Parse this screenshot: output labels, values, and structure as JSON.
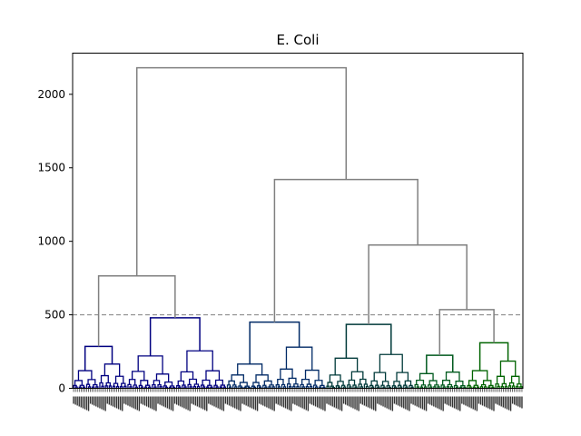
{
  "chart_data": {
    "type": "dendrogram",
    "title": "E. Coli",
    "xlabel": "",
    "ylabel": "",
    "ylim": [
      0,
      2280
    ],
    "y_ticks": [
      0,
      500,
      1000,
      1500,
      2000
    ],
    "threshold": 500,
    "threshold_style": "dashed",
    "grid": false,
    "colors": {
      "above_threshold": "#808080",
      "threshold_line": "#808080",
      "clusters": [
        "#000080",
        "#002a66",
        "#003a3a",
        "#005a1e",
        "#006400"
      ]
    },
    "upper_merges": [
      {
        "height": 2180,
        "children": [
          "A",
          "BC"
        ]
      },
      {
        "height": 1420,
        "children": [
          "B",
          "C"
        ]
      },
      {
        "height": 975,
        "children": [
          "C1",
          "C2"
        ]
      },
      {
        "height": 765,
        "children": [
          "A1",
          "A2"
        ]
      },
      {
        "height": 535,
        "children": [
          "C2a",
          "C2b"
        ]
      },
      {
        "height": 450,
        "children": [
          "B1",
          "B2"
        ]
      },
      {
        "height": 435,
        "children": [
          "C1a",
          "C1b"
        ]
      }
    ],
    "clusters": [
      {
        "id": "A1",
        "merge_height": 285,
        "color": "#000080",
        "subclusters": [
          120,
          165
        ]
      },
      {
        "id": "A2",
        "merge_height": 480,
        "color": "#000080",
        "subclusters": [
          220,
          255
        ]
      },
      {
        "id": "B",
        "merge_height": 450,
        "color": "#002a66",
        "subclusters": [
          165,
          280
        ]
      },
      {
        "id": "C1",
        "merge_height": 435,
        "color": "#003a3a",
        "subclusters": [
          205,
          230
        ]
      },
      {
        "id": "C2a",
        "merge_height": 225,
        "color": "#005a1e",
        "subclusters": [
          100,
          110
        ]
      },
      {
        "id": "C2b",
        "merge_height": 310,
        "color": "#006400",
        "subclusters": [
          120,
          185
        ]
      }
    ],
    "leaf_count": 240
  }
}
